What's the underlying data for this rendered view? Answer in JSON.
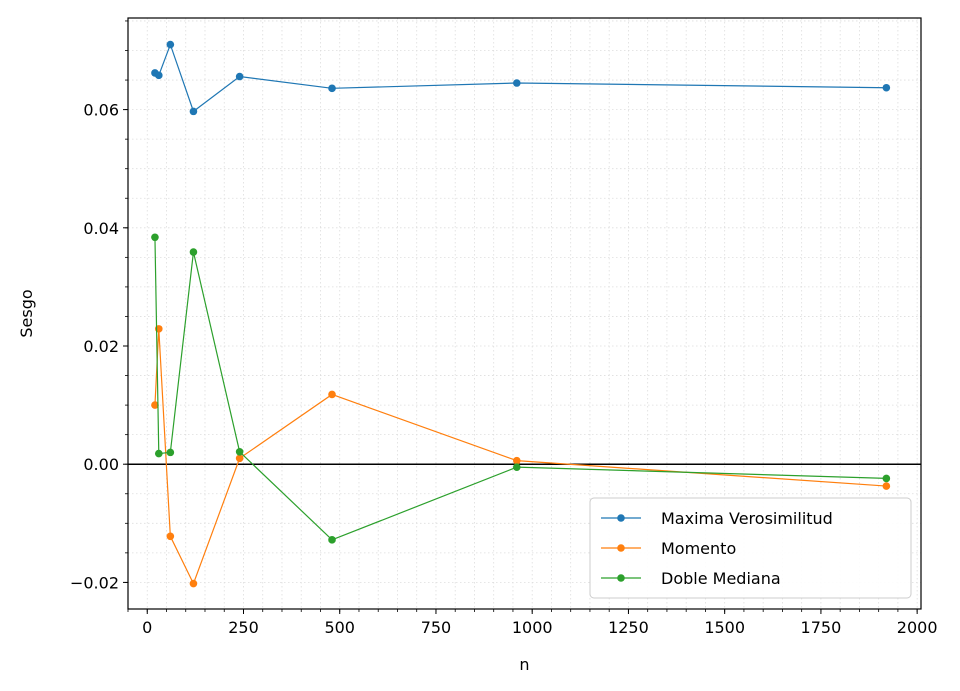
{
  "chart_data": {
    "type": "line",
    "xlabel": "n",
    "ylabel": "Sesgo",
    "xlim": [
      -50,
      2010
    ],
    "ylim": [
      -0.0245,
      0.0755
    ],
    "xticks": [
      0,
      250,
      500,
      750,
      1000,
      1250,
      1500,
      1750,
      2000
    ],
    "xtick_labels": [
      "0",
      "250",
      "500",
      "750",
      "1000",
      "1250",
      "1500",
      "1750",
      "2000"
    ],
    "yticks": [
      -0.02,
      0.0,
      0.02,
      0.04,
      0.06
    ],
    "ytick_labels": [
      "−0.02",
      "0.00",
      "0.02",
      "0.04",
      "0.06"
    ],
    "grid": "minor dotted",
    "reference_line_y": 0,
    "legend_position": "lower-right",
    "x": [
      20,
      30,
      60,
      120,
      240,
      480,
      960,
      1920
    ],
    "series": [
      {
        "name": "Maxima Verosimilitud",
        "color": "#1f77b4",
        "values": [
          0.0662,
          0.0658,
          0.071,
          0.0597,
          0.0656,
          0.0636,
          0.0645,
          0.0637
        ]
      },
      {
        "name": "Momento",
        "color": "#ff7f0e",
        "values": [
          0.01,
          0.0229,
          -0.0122,
          -0.0202,
          0.001,
          0.0118,
          0.0006,
          -0.0037
        ]
      },
      {
        "name": "Doble Mediana",
        "color": "#2ca02c",
        "values": [
          0.0384,
          0.0018,
          0.002,
          0.0359,
          0.0021,
          -0.0128,
          -0.0005,
          -0.0024
        ]
      }
    ]
  }
}
